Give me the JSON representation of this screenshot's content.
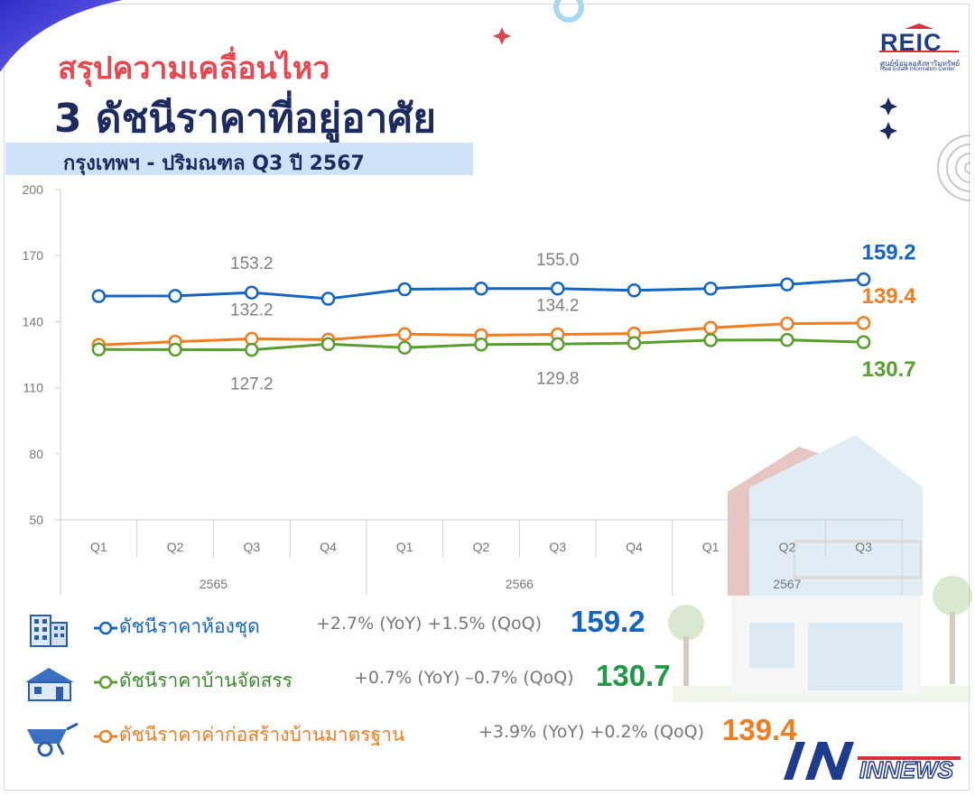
{
  "header": {
    "title_line1": "สรุปความเคลื่อนไหว",
    "title_line2": "3 ดัชนีราคาที่อยู่อาศัย",
    "subtitle": "กรุงเทพฯ - ปริมณฑล Q3 ปี 2567"
  },
  "logo": {
    "name": "REIC",
    "line1": "ศูนย์ข้อมูลอสังหาริมทรัพย์",
    "line2": "Real Estate Information Center"
  },
  "watermark": "INNEWS",
  "colors": {
    "condo": "#1565c0",
    "housing": "#5a9e2f",
    "construction": "#ef7d22",
    "title_red": "#e8474f",
    "title_navy": "#1c2a5e",
    "axis_text": "#777777",
    "data_label_grey": "#7f7f7f"
  },
  "chart_data": {
    "type": "line",
    "y_ticks": [
      "200",
      "170",
      "140",
      "110",
      "80",
      "50"
    ],
    "ylim": [
      50,
      200
    ],
    "grid": false,
    "categories": [
      "Q1",
      "Q2",
      "Q3",
      "Q4",
      "Q1",
      "Q2",
      "Q3",
      "Q4",
      "Q1",
      "Q2",
      "Q3"
    ],
    "year_groups": [
      {
        "label": "2565",
        "count": 4
      },
      {
        "label": "2566",
        "count": 4
      },
      {
        "label": "2567",
        "count": 3
      }
    ],
    "series": [
      {
        "name": "ดัชนีราคาห้องชุด",
        "color_key": "condo",
        "values": [
          151.6,
          151.7,
          153.2,
          150.4,
          154.7,
          155.0,
          155.0,
          154.2,
          155.0,
          156.9,
          159.2
        ],
        "labels": [
          {
            "index": 2,
            "text": "153.2",
            "style": "grey",
            "place": "above"
          },
          {
            "index": 6,
            "text": "155.0",
            "style": "grey",
            "place": "above"
          },
          {
            "index": 10,
            "text": "159.2",
            "style": "bold",
            "place": "above"
          }
        ]
      },
      {
        "name": "ดัชนีราคาค่าก่อสร้างบ้านมาตรฐาน",
        "color_key": "construction",
        "values": [
          129.4,
          130.9,
          132.2,
          131.8,
          134.3,
          133.8,
          134.2,
          134.6,
          137.2,
          139.1,
          139.4
        ],
        "labels": [
          {
            "index": 2,
            "text": "132.2",
            "style": "grey",
            "place": "above"
          },
          {
            "index": 6,
            "text": "134.2",
            "style": "grey",
            "place": "above"
          },
          {
            "index": 10,
            "text": "139.4",
            "style": "bold",
            "place": "above"
          }
        ]
      },
      {
        "name": "ดัชนีราคาบ้านจัดสรร",
        "color_key": "housing",
        "values": [
          127.4,
          127.3,
          127.2,
          129.8,
          128.2,
          129.6,
          129.8,
          130.3,
          131.6,
          131.7,
          130.7
        ],
        "labels": [
          {
            "index": 2,
            "text": "127.2",
            "style": "grey",
            "place": "below"
          },
          {
            "index": 6,
            "text": "129.8",
            "style": "grey",
            "place": "below"
          },
          {
            "index": 10,
            "text": "130.7",
            "style": "bold",
            "place": "below"
          }
        ]
      }
    ]
  },
  "legend": [
    {
      "name": "ดัชนีราคาห้องชุด",
      "stats": "+2.7% (YoY) +1.5% (QoQ)",
      "value": "159.2",
      "color_key": "condo",
      "icon": "condo-building-icon"
    },
    {
      "name": "ดัชนีราคาบ้านจัดสรร",
      "stats": "+0.7% (YoY) –0.7% (QoQ)",
      "value": "130.7",
      "color_key": "housing",
      "icon": "house-icon"
    },
    {
      "name": "ดัชนีราคาค่าก่อสร้างบ้านมาตรฐาน",
      "stats": "+3.9% (YoY) +0.2% (QoQ)",
      "value": "139.4",
      "color_key": "construction",
      "icon": "wheelbarrow-icon"
    }
  ]
}
